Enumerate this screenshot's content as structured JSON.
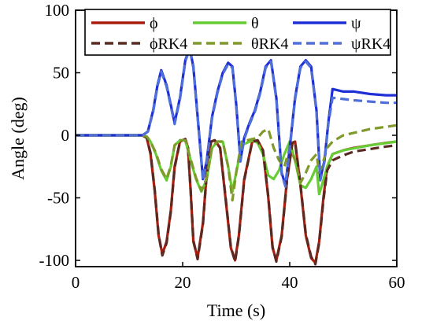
{
  "chart_data": {
    "type": "line",
    "xlabel": "Time (s)",
    "ylabel": "Angle (deg)",
    "xlim": [
      0,
      60
    ],
    "ylim": [
      -105,
      100
    ],
    "xticks": [
      0,
      20,
      40,
      60
    ],
    "yticks": [
      -100,
      -50,
      0,
      50,
      100
    ],
    "xtick_labels": [
      "0",
      "20",
      "40",
      "60"
    ],
    "ytick_labels": [
      "-100",
      "-50",
      "0",
      "50",
      "100"
    ],
    "grid": false,
    "legend_position": "top",
    "series": [
      {
        "name": "ϕ",
        "color": "#a81d0d",
        "style": "solid",
        "x": [
          0,
          5,
          10,
          12.5,
          13.3,
          14,
          14.8,
          15.5,
          16.2,
          17,
          17.8,
          18.5,
          19.5,
          20.5,
          21,
          21.5,
          22,
          22.8,
          23.8,
          24.5,
          25.3,
          26,
          27,
          28,
          29,
          29.8,
          30.5,
          31.5,
          33,
          34,
          35,
          36,
          36.8,
          37.5,
          38.5,
          39.5,
          40.5,
          41,
          42,
          43,
          44,
          44.8,
          45.5,
          46.3,
          47,
          48,
          50,
          52,
          55,
          58,
          60
        ],
        "y": [
          0,
          0,
          0,
          0,
          -2,
          -15,
          -45,
          -80,
          -95,
          -85,
          -60,
          -25,
          -5,
          -3,
          -10,
          -45,
          -85,
          -98,
          -70,
          -30,
          -5,
          -4,
          -10,
          -50,
          -90,
          -100,
          -80,
          -35,
          -5,
          -4,
          -12,
          -50,
          -90,
          -100,
          -80,
          -35,
          -6,
          -5,
          -40,
          -80,
          -98,
          -102,
          -85,
          -50,
          -25,
          -15,
          -12,
          -10,
          -8,
          -6,
          -5
        ]
      },
      {
        "name": "θ",
        "color": "#66cc33",
        "style": "solid",
        "x": [
          0,
          5,
          10,
          12.5,
          13.3,
          14,
          15,
          16,
          17,
          17.8,
          18.5,
          19.5,
          20.5,
          21.5,
          22.5,
          23.5,
          24.5,
          25.5,
          26.5,
          27.5,
          28.5,
          29.3,
          30,
          31,
          33,
          34,
          35,
          36,
          37,
          38,
          39,
          40,
          41,
          42,
          43,
          44,
          45,
          45.5,
          46,
          47,
          48,
          50,
          55,
          60
        ],
        "y": [
          0,
          0,
          0,
          0,
          -1,
          -5,
          -15,
          -28,
          -36,
          -25,
          -8,
          -4,
          -4,
          -20,
          -35,
          -45,
          -35,
          -10,
          -5,
          -5,
          -25,
          -45,
          -30,
          -8,
          -4,
          -6,
          -15,
          -32,
          -35,
          -28,
          -15,
          -5,
          -20,
          -40,
          -42,
          -35,
          -25,
          -47,
          -40,
          -25,
          -15,
          -12,
          -8,
          -5
        ]
      },
      {
        "name": "ψ",
        "color": "#1f2fd6",
        "style": "solid",
        "x": [
          0,
          5,
          10,
          12.5,
          13.5,
          14.5,
          15.3,
          16,
          17,
          18.5,
          19.5,
          20.5,
          21.3,
          22,
          23,
          23.8,
          24.5,
          25.5,
          26.5,
          27.5,
          28.5,
          29.3,
          30,
          30.8,
          31.5,
          32.5,
          33.5,
          34.5,
          35.5,
          36.5,
          37.5,
          38.5,
          39.2,
          40,
          41,
          42,
          43,
          44,
          45,
          45.7,
          46.5,
          47.2,
          48,
          50,
          52,
          55,
          58,
          60
        ],
        "y": [
          0,
          0,
          0,
          0,
          3,
          20,
          40,
          52,
          40,
          10,
          30,
          60,
          70,
          55,
          5,
          -35,
          -20,
          15,
          35,
          50,
          58,
          55,
          25,
          -20,
          -2,
          10,
          20,
          35,
          55,
          60,
          30,
          -30,
          -40,
          -10,
          30,
          55,
          60,
          55,
          20,
          -35,
          -20,
          10,
          37,
          35,
          35,
          33,
          32,
          32
        ]
      },
      {
        "name": "ϕRK4",
        "color": "#5a2a22",
        "style": "dashed",
        "x": [
          0,
          5,
          10,
          12.5,
          13.3,
          14,
          14.8,
          15.5,
          16.2,
          17,
          17.8,
          18.5,
          19.5,
          20.5,
          21,
          21.5,
          22,
          22.8,
          23.8,
          24.5,
          25.3,
          26,
          27,
          28,
          29,
          29.8,
          30.5,
          31.5,
          33,
          34,
          35,
          36,
          36.8,
          37.5,
          38.5,
          39.5,
          40.5,
          41,
          42,
          43,
          44,
          44.8,
          45.5,
          46.3,
          47,
          48,
          50,
          52,
          55,
          58,
          60
        ],
        "y": [
          0,
          0,
          0,
          0,
          -2,
          -14,
          -44,
          -79,
          -96,
          -86,
          -61,
          -26,
          -5,
          -3,
          -10,
          -44,
          -84,
          -99,
          -71,
          -31,
          -5,
          -4,
          -10,
          -49,
          -89,
          -101,
          -81,
          -36,
          -5,
          -4,
          -12,
          -49,
          -89,
          -101,
          -81,
          -36,
          -6,
          -5,
          -39,
          -79,
          -97,
          -103,
          -86,
          -52,
          -28,
          -20,
          -16,
          -13,
          -11,
          -9,
          -8
        ]
      },
      {
        "name": "θRK4",
        "color": "#7f9a2b",
        "style": "dashed",
        "x": [
          0,
          5,
          10,
          12.5,
          13.3,
          14,
          15,
          16,
          17,
          17.8,
          18.5,
          19.5,
          20.5,
          21.5,
          22.5,
          23.5,
          24.5,
          25.5,
          26.5,
          27.5,
          28.5,
          29.3,
          30,
          31,
          33,
          34,
          35,
          36,
          37,
          38,
          39,
          40,
          41,
          42,
          43,
          44,
          45,
          45.5,
          46,
          47,
          48,
          50,
          55,
          60
        ],
        "y": [
          0,
          0,
          0,
          0,
          -1,
          -5,
          -14,
          -27,
          -35,
          -24,
          -8,
          -4,
          -4,
          -19,
          -34,
          -44,
          -34,
          -9,
          -5,
          -5,
          -25,
          -52,
          -30,
          -5,
          -3,
          -2,
          3,
          5,
          -10,
          -20,
          -25,
          -10,
          -20,
          -38,
          -30,
          -20,
          -15,
          -30,
          -25,
          -10,
          -5,
          0,
          5,
          8
        ]
      },
      {
        "name": "ψRK4",
        "color": "#4f6fd9",
        "style": "dashed",
        "x": [
          0,
          5,
          10,
          12.5,
          13.5,
          14.5,
          15.3,
          16,
          17,
          18.5,
          19.5,
          20.5,
          21.3,
          22,
          23,
          23.8,
          24.5,
          25.5,
          26.5,
          27.5,
          28.5,
          29.3,
          30,
          30.8,
          31.5,
          32.5,
          33.5,
          34.5,
          35.5,
          36.5,
          37.5,
          38.5,
          39.2,
          40,
          41,
          42,
          43,
          44,
          45,
          45.7,
          46.5,
          47.2,
          48,
          50,
          52,
          55,
          58,
          60
        ],
        "y": [
          0,
          0,
          0,
          0,
          3,
          19,
          39,
          51,
          39,
          9,
          29,
          59,
          69,
          54,
          4,
          -36,
          -21,
          14,
          34,
          49,
          57,
          54,
          24,
          -21,
          -3,
          9,
          19,
          34,
          54,
          59,
          29,
          -31,
          -41,
          -11,
          29,
          54,
          59,
          54,
          19,
          -36,
          -21,
          9,
          30,
          29,
          28,
          27,
          26,
          26
        ]
      }
    ]
  }
}
